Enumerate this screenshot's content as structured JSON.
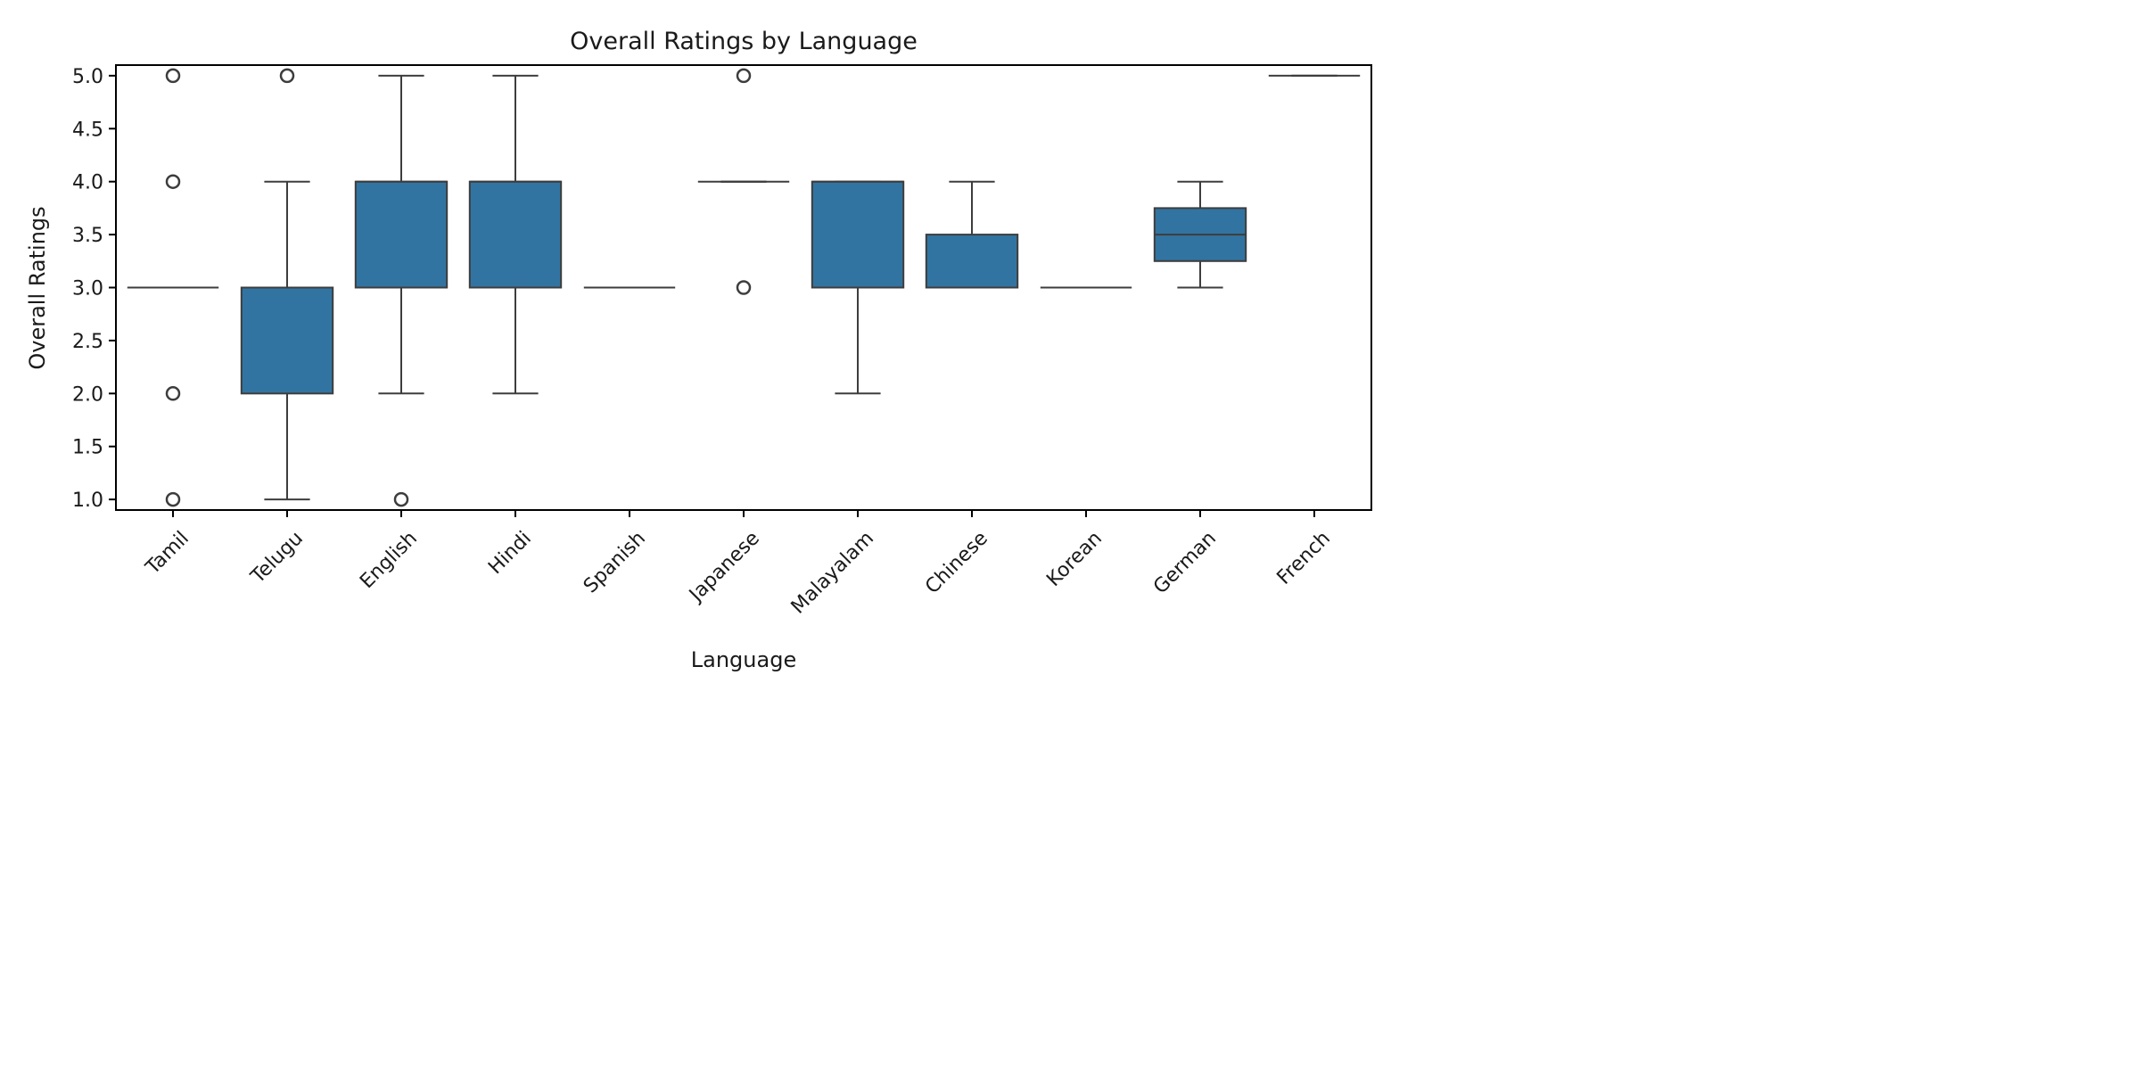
{
  "chart_data": {
    "type": "box",
    "title": "Overall Ratings by Language",
    "xlabel": "Language",
    "ylabel": "Overall Ratings",
    "ylim": [
      0.9,
      5.1
    ],
    "yticks": [
      "1.0",
      "1.5",
      "2.0",
      "2.5",
      "3.0",
      "3.5",
      "4.0",
      "4.5",
      "5.0"
    ],
    "grid": false,
    "box_color": "#3274a1",
    "line_color": "#3d3d3d",
    "categories": [
      "Tamil",
      "Telugu",
      "English",
      "Hindi",
      "Spanish",
      "Japanese",
      "Malayalam",
      "Chinese",
      "Korean",
      "German",
      "French"
    ],
    "boxes": [
      {
        "category": "Tamil",
        "whisker_low": 3.0,
        "q1": 3.0,
        "median": 3.0,
        "q3": 3.0,
        "whisker_high": 3.0,
        "outliers": [
          1.0,
          2.0,
          4.0,
          5.0
        ]
      },
      {
        "category": "Telugu",
        "whisker_low": 1.0,
        "q1": 2.0,
        "median": 3.0,
        "q3": 3.0,
        "whisker_high": 4.0,
        "outliers": [
          5.0
        ]
      },
      {
        "category": "English",
        "whisker_low": 2.0,
        "q1": 3.0,
        "median": 4.0,
        "q3": 4.0,
        "whisker_high": 5.0,
        "outliers": [
          1.0
        ]
      },
      {
        "category": "Hindi",
        "whisker_low": 2.0,
        "q1": 3.0,
        "median": 4.0,
        "q3": 4.0,
        "whisker_high": 5.0,
        "outliers": []
      },
      {
        "category": "Spanish",
        "whisker_low": 3.0,
        "q1": 3.0,
        "median": 3.0,
        "q3": 3.0,
        "whisker_high": 3.0,
        "outliers": []
      },
      {
        "category": "Japanese",
        "whisker_low": 4.0,
        "q1": 4.0,
        "median": 4.0,
        "q3": 4.0,
        "whisker_high": 4.0,
        "outliers": [
          3.0,
          5.0
        ]
      },
      {
        "category": "Malayalam",
        "whisker_low": 2.0,
        "q1": 3.0,
        "median": 4.0,
        "q3": 4.0,
        "whisker_high": 4.0,
        "outliers": []
      },
      {
        "category": "Chinese",
        "whisker_low": 3.0,
        "q1": 3.0,
        "median": 3.0,
        "q3": 3.5,
        "whisker_high": 4.0,
        "outliers": []
      },
      {
        "category": "Korean",
        "whisker_low": 3.0,
        "q1": 3.0,
        "median": 3.0,
        "q3": 3.0,
        "whisker_high": 3.0,
        "outliers": []
      },
      {
        "category": "German",
        "whisker_low": 3.0,
        "q1": 3.25,
        "median": 3.5,
        "q3": 3.75,
        "whisker_high": 4.0,
        "outliers": []
      },
      {
        "category": "French",
        "whisker_low": 5.0,
        "q1": 5.0,
        "median": 5.0,
        "q3": 5.0,
        "whisker_high": 5.0,
        "outliers": []
      }
    ]
  }
}
